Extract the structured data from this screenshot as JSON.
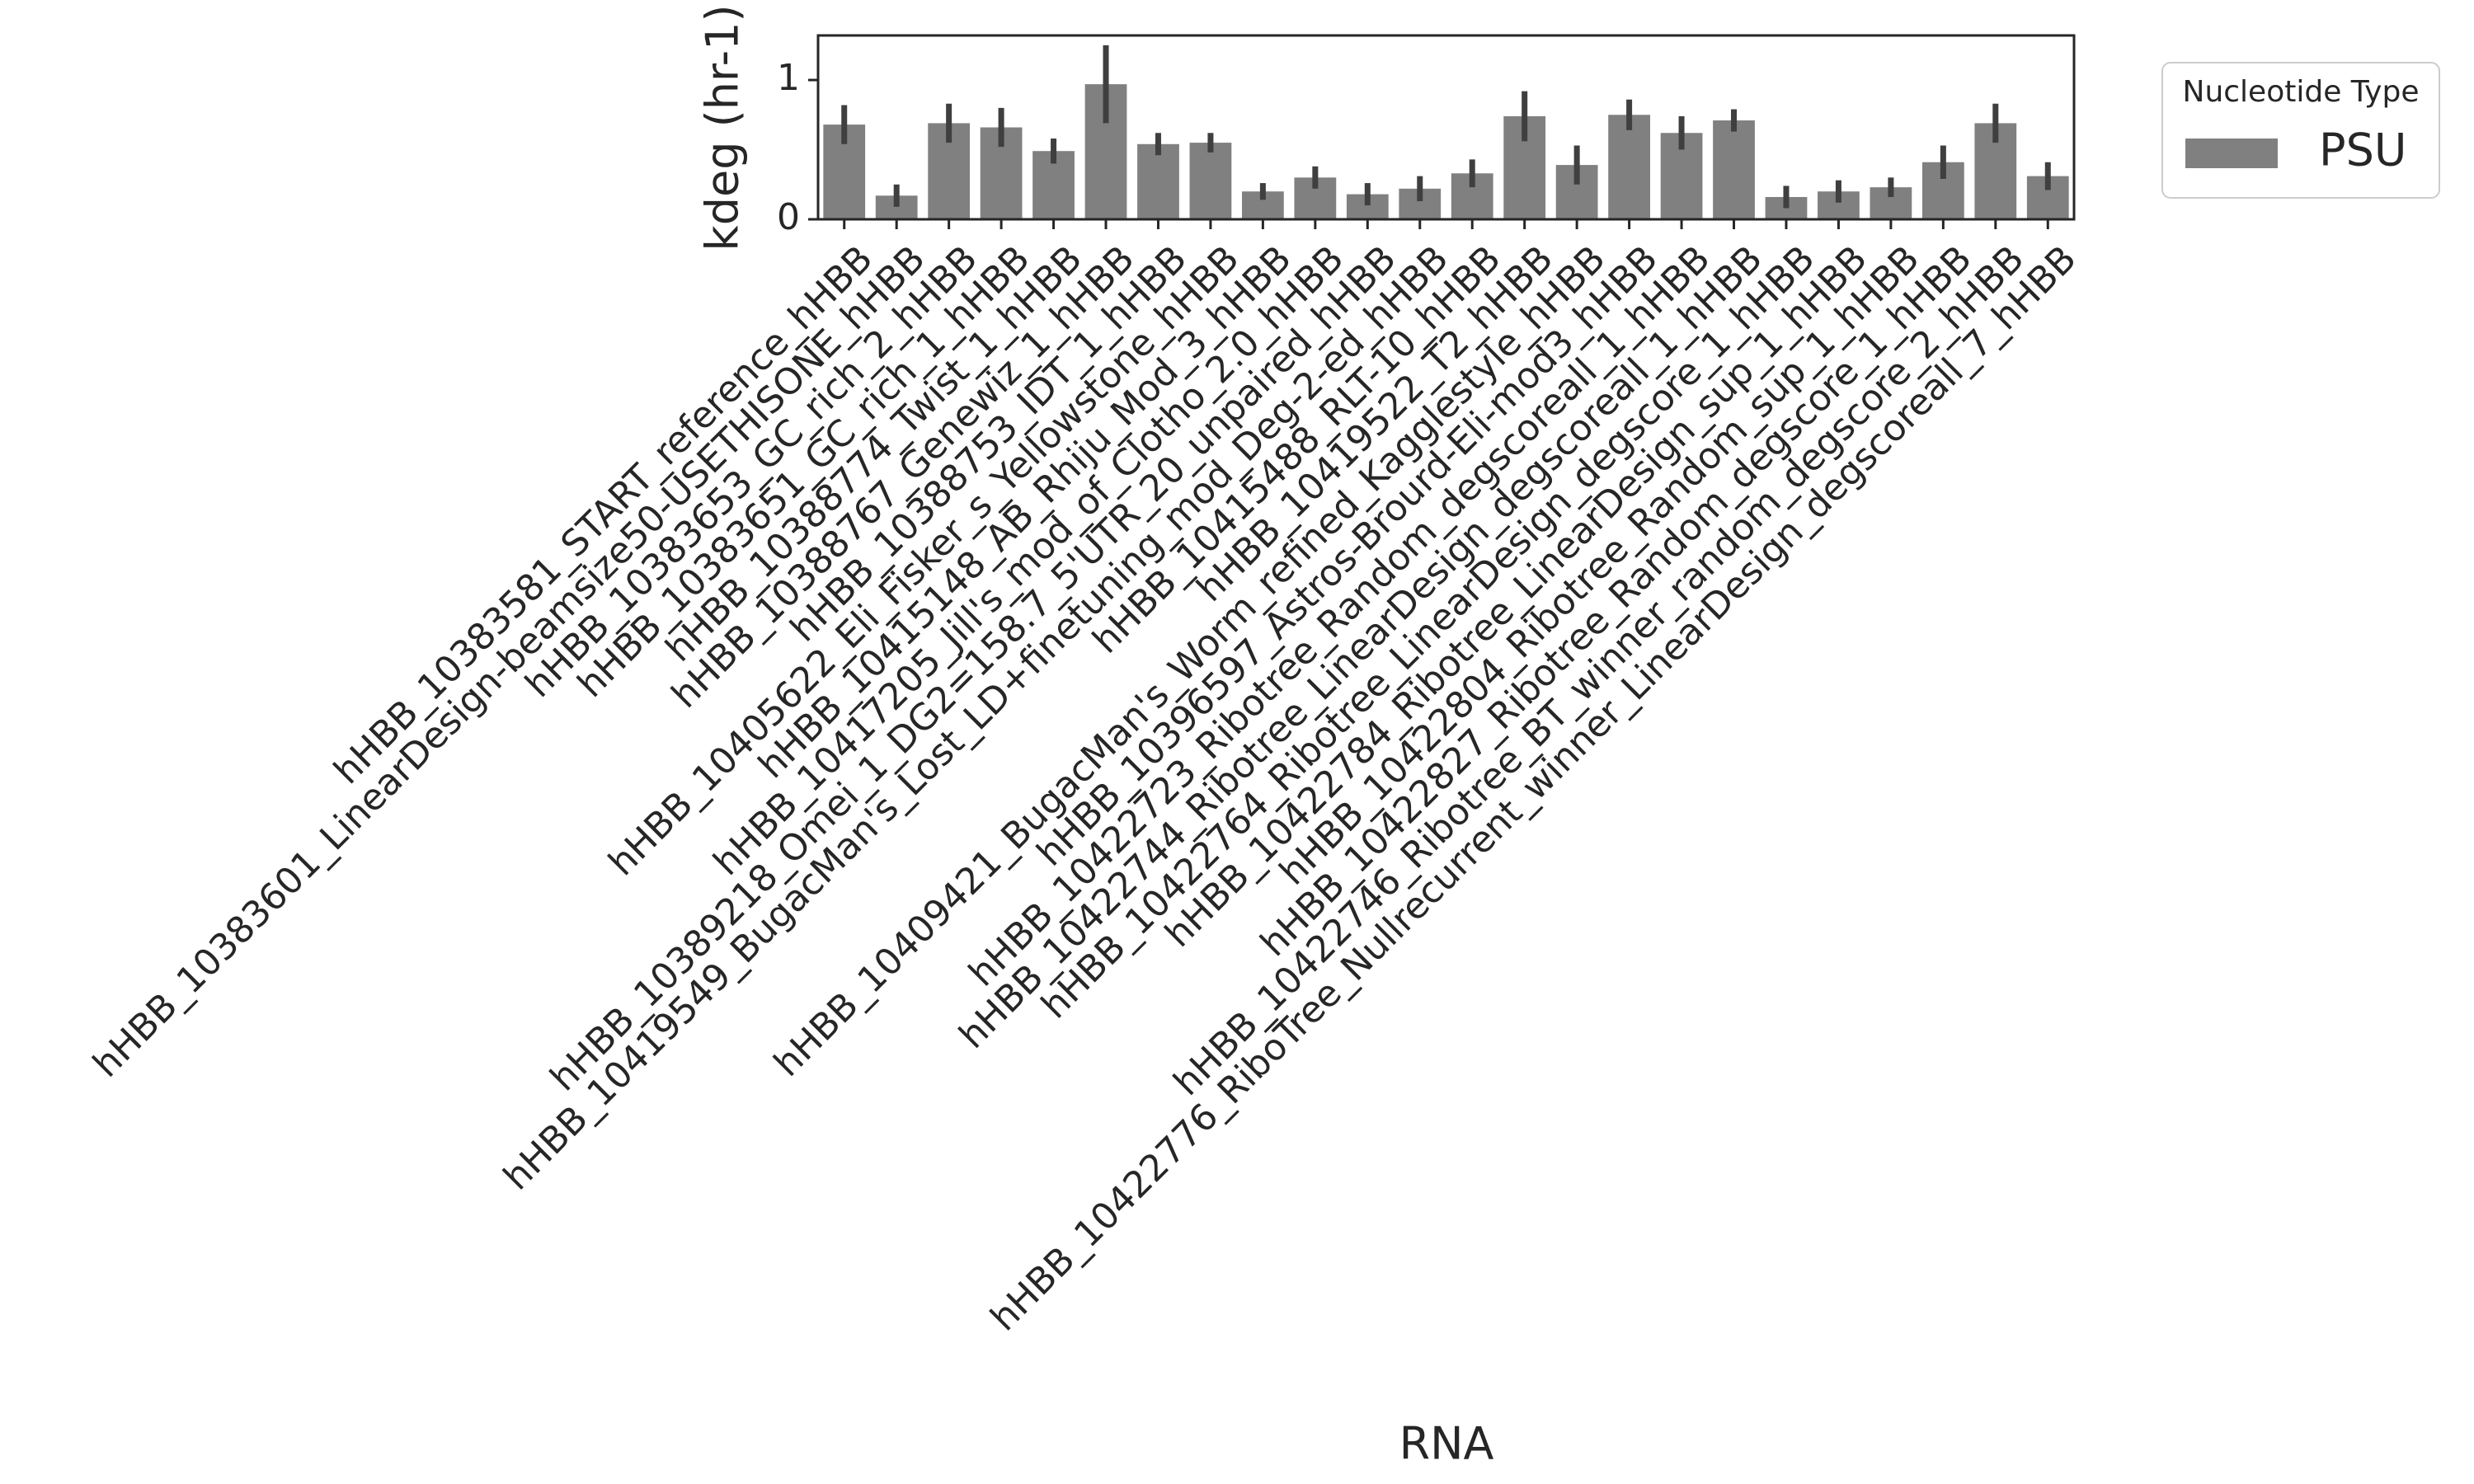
{
  "chart_data": {
    "type": "bar",
    "xlabel": "RNA",
    "ylabel": "kdeg (hr-1)",
    "categories": [
      "hHBB_10383581_START_reference_hHBB",
      "hHBB_10383601_LinearDesign-beamsize50-USETHISONE_hHBB",
      "hHBB_10383653_GC_rich_2_hHBB",
      "hHBB_10383651_GC_rich_1_hHBB",
      "hHBB_10388774_Twist_1_hHBB",
      "hHBB_10388767_Genewiz_1_hHBB",
      "hHBB_10388753_IDT_1_hHBB",
      "hHBB_10405622_Eli_Fisker_s_Yellowstone_hHBB",
      "hHBB_10415148_AB_Rhiju_Mod_3_hHBB",
      "hHBB_10417205_Jill's_mod_of_Clotho_2.0_hHBB",
      "hHBB_10389218_Omei_1_DG2=158.7_5'UTR_20_unpaired_hHBB",
      "hHBB_10419549_BugacMan's_Lost_LD+finetuning_mod_Deg-2-ed_hHBB",
      "hHBB_10415488_RLT-10_hHBB",
      "hHBB_10419522_T2_hHBB",
      "hHBB_10409421_BugacMan's_Worm_refined_Kagglestyle_hHBB",
      "hHBB_10396597_Astros-Brourd-Eli-mod3_hHBB",
      "hHBB_10422723_Ribotree_Random_degscoreall_1_hHBB",
      "hHBB_10422744_Ribotree_LinearDesign_degscoreall_1_hHBB",
      "hHBB_10422764_Ribotree_LinearDesign_degscore_1_hHBB",
      "hHBB_10422784_Ribotree_LinearDesign_sup_1_hHBB",
      "hHBB_10422804_Ribotree_Random_sup_1_hHBB",
      "hHBB_10422827_Ribotree_Random_degscore_1_hHBB",
      "hHBB_10422746_Ribotree_BT_winner_random_degscore_2_hHBB",
      "hHBB_10422776_RiboTree_Nullrecurrent_winner_LinearDesign_degscoreall_7_hHBB"
    ],
    "series": [
      {
        "name": "PSU",
        "color": "#808080",
        "values": [
          0.68,
          0.17,
          0.69,
          0.66,
          0.49,
          0.97,
          0.54,
          0.55,
          0.2,
          0.3,
          0.18,
          0.22,
          0.33,
          0.74,
          0.39,
          0.75,
          0.62,
          0.71,
          0.16,
          0.2,
          0.23,
          0.41,
          0.69,
          0.31
        ],
        "errors": [
          0.14,
          0.08,
          0.14,
          0.14,
          0.09,
          0.28,
          0.08,
          0.07,
          0.06,
          0.08,
          0.08,
          0.09,
          0.1,
          0.18,
          0.14,
          0.11,
          0.12,
          0.08,
          0.08,
          0.08,
          0.07,
          0.12,
          0.14,
          0.1
        ]
      }
    ],
    "error_color": "#3f3f3f",
    "ylim": [
      0,
      1.32
    ],
    "yticks": [
      0,
      1
    ],
    "legend_title": "Nucleotide Type",
    "legend": "upper right outside"
  }
}
